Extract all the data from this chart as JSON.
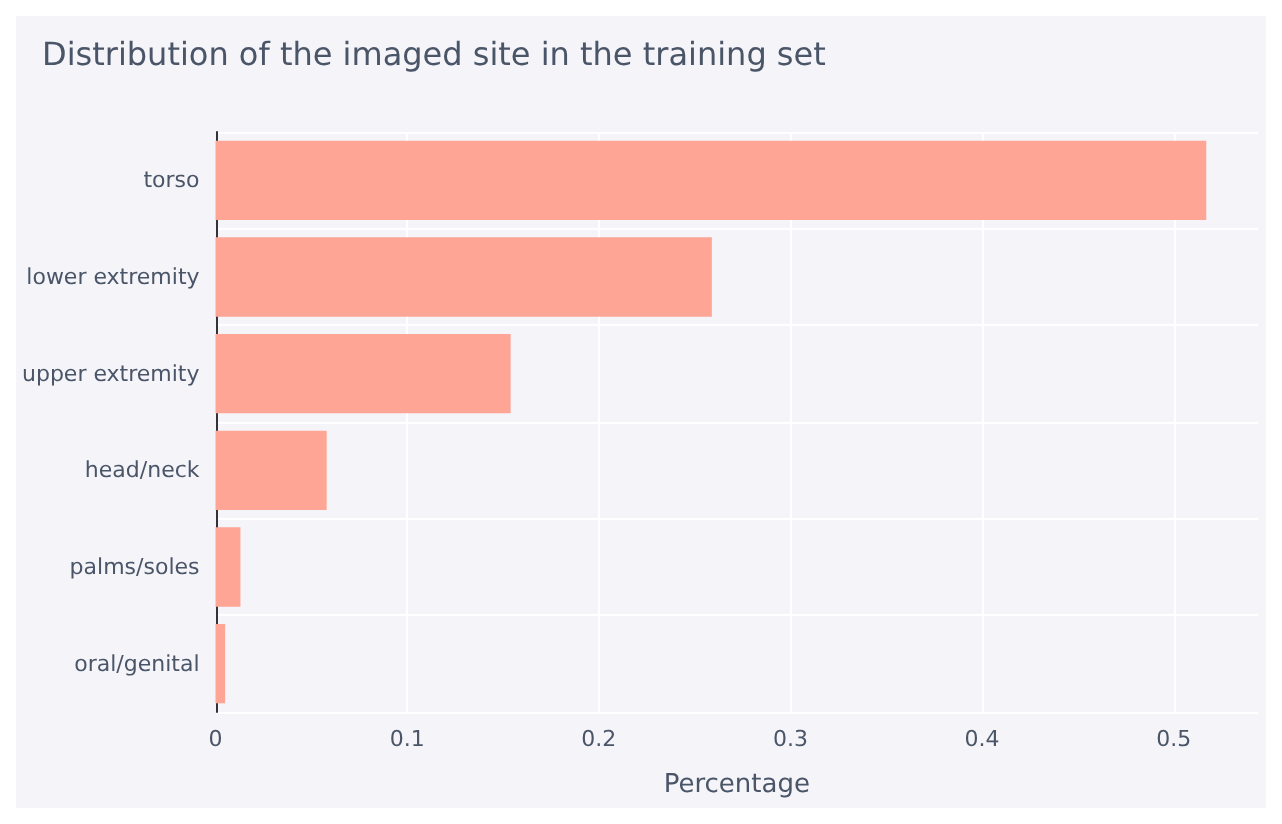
{
  "chart_data": {
    "type": "bar",
    "orientation": "horizontal",
    "title": "Distribution of the imaged site in the training set",
    "xlabel": "Percentage",
    "categories": [
      "torso",
      "lower extremity",
      "upper extremity",
      "head/neck",
      "palms/soles",
      "oral/genital"
    ],
    "values": [
      0.517,
      0.259,
      0.154,
      0.058,
      0.013,
      0.005
    ],
    "color": "#fea596",
    "xlim": [
      0,
      0.544
    ],
    "xticks": [
      0,
      0.1,
      0.2,
      0.3,
      0.4,
      0.5
    ],
    "grid": true
  }
}
